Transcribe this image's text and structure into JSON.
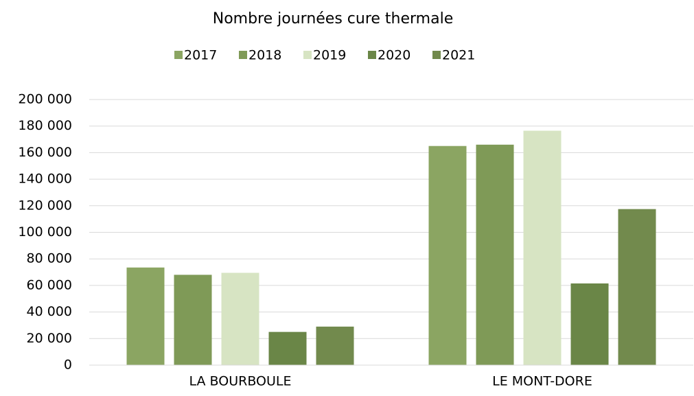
{
  "chart_data": {
    "type": "bar",
    "title": "Nombre journées cure thermale",
    "categories": [
      "LA BOURBOULE",
      "LE MONT-DORE"
    ],
    "series": [
      {
        "name": "2017",
        "color": "#8ba562",
        "values": [
          73500,
          165000
        ]
      },
      {
        "name": "2018",
        "color": "#7f9a57",
        "values": [
          68000,
          166000
        ]
      },
      {
        "name": "2019",
        "color": "#d7e4c3",
        "values": [
          69500,
          176500
        ]
      },
      {
        "name": "2020",
        "color": "#6a8647",
        "values": [
          25000,
          61500
        ]
      },
      {
        "name": "2021",
        "color": "#728a4d",
        "values": [
          29000,
          117500
        ]
      }
    ],
    "ylim": [
      0,
      200000
    ],
    "yticks": [
      0,
      {
        "value": 20000,
        "label": "20 000"
      },
      {
        "value": 40000,
        "label": "40 000"
      },
      {
        "value": 60000,
        "label": "60 000"
      },
      {
        "value": 80000,
        "label": "80 000"
      },
      {
        "value": 100000,
        "label": "100 000"
      },
      {
        "value": 120000,
        "label": "120 000"
      },
      {
        "value": 140000,
        "label": "140 000"
      },
      {
        "value": 160000,
        "label": "160 000"
      },
      {
        "value": 180000,
        "label": "180 000"
      },
      {
        "value": 200000,
        "label": "200 000"
      }
    ],
    "grid": true,
    "legend": "top"
  }
}
